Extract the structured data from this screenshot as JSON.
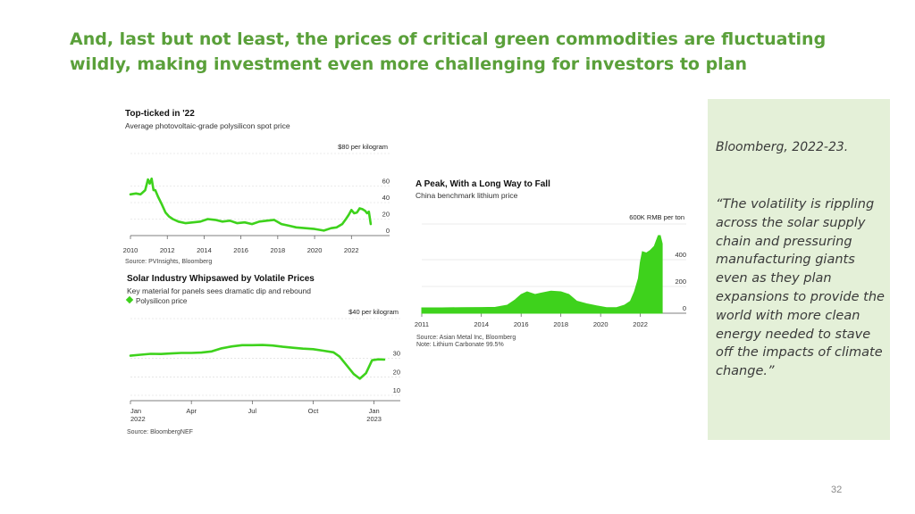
{
  "slide": {
    "title": "And, last but not least, the prices of critical green commodities are fluctuating wildly, making investment even more challenging for investors to plan",
    "source": "Bloomberg, 2022-23.",
    "quote": "“The volatility is rippling across the solar supply chain and pressuring manufacturing giants even as they plan expansions to provide the world with more clean energy needed to stave off the impacts of climate change.”",
    "page_number": "32",
    "accent_color": "#5aa03a",
    "sidebar_color": "#e4f0d8"
  },
  "chart_data": [
    {
      "type": "line",
      "title": "Top-ticked in '22",
      "subtitle": "Average photovoltaic-grade polysilicon spot price",
      "unit_label": "$80 per kilogram",
      "yticks": [
        "60",
        "40",
        "20",
        "0"
      ],
      "ylim": [
        0,
        80
      ],
      "xlim": [
        2010,
        2023.2
      ],
      "xticks": [
        "2010",
        "2012",
        "2014",
        "2016",
        "2018",
        "2020",
        "2022"
      ],
      "source": "Source: PVInsights, Bloomberg",
      "color": "#3ed21c",
      "x": [
        2010,
        2010.3,
        2010.55,
        2010.8,
        2010.95,
        2011.05,
        2011.15,
        2011.25,
        2011.35,
        2011.5,
        2011.7,
        2011.9,
        2012.1,
        2012.3,
        2012.6,
        2013,
        2013.4,
        2013.8,
        2014.2,
        2014.6,
        2015,
        2015.4,
        2015.8,
        2016.2,
        2016.6,
        2017,
        2017.4,
        2017.8,
        2018.2,
        2018.6,
        2019,
        2019.5,
        2020,
        2020.5,
        2020.9,
        2021.2,
        2021.5,
        2021.7,
        2021.85,
        2022,
        2022.15,
        2022.3,
        2022.45,
        2022.6,
        2022.75,
        2022.85,
        2022.95,
        2023.05
      ],
      "values": [
        50,
        51,
        50,
        55,
        68,
        63,
        69,
        55,
        55,
        47,
        38,
        28,
        23,
        20,
        17,
        15,
        16,
        17,
        20,
        19,
        17,
        18,
        15,
        16,
        14,
        17,
        18,
        19,
        14,
        12,
        10,
        9,
        8,
        6,
        9,
        10,
        14,
        20,
        25,
        31,
        27,
        28,
        33,
        32,
        30,
        27,
        29,
        14
      ]
    },
    {
      "type": "line",
      "title": "Solar Industry Whipsawed by Volatile Prices",
      "subtitle": "Key material for panels sees dramatic dip and rebound",
      "legend": [
        "Polysilicon price"
      ],
      "unit_label": "$40 per kilogram",
      "yticks": [
        "30",
        "20",
        "10"
      ],
      "ylim": [
        10,
        40
      ],
      "xlim": [
        0,
        12.5
      ],
      "xticks": [
        "Jan 2022",
        "Apr",
        "Jul",
        "Oct",
        "Jan 2023"
      ],
      "source": "Source: BloombergNEF",
      "color": "#3ed21c",
      "x": [
        0,
        0.5,
        1,
        1.5,
        2,
        2.5,
        3,
        3.5,
        4,
        4.5,
        5,
        5.5,
        6,
        6.5,
        7,
        7.5,
        8,
        8.5,
        9,
        9.5,
        10,
        10.3,
        10.6,
        11,
        11.3,
        11.6,
        11.9,
        12.2,
        12.5
      ],
      "values": [
        31.5,
        32,
        32.5,
        32.4,
        32.7,
        33,
        33,
        33.2,
        33.8,
        35.5,
        36.5,
        37.2,
        37.2,
        37.3,
        37,
        36.3,
        35.8,
        35.3,
        35,
        34.2,
        33.3,
        31,
        27,
        21.5,
        19,
        22,
        29,
        29.5,
        29.4
      ]
    },
    {
      "type": "area",
      "title": "A Peak, With a Long Way to Fall",
      "subtitle": "China benchmark lithium price",
      "unit_label": "600K RMB per ton",
      "yticks": [
        "400",
        "200",
        "0"
      ],
      "ylim": [
        0,
        600
      ],
      "xlim": [
        2011,
        2023.5
      ],
      "xticks": [
        "2011",
        "2014",
        "2016",
        "2018",
        "2020",
        "2022"
      ],
      "source": "Source: Asian Metal Inc, Bloomberg",
      "note": "Note: Lithium Carbonate 99.5%",
      "color": "#3ed21c",
      "x": [
        2011,
        2012,
        2013,
        2014,
        2014.7,
        2015.3,
        2015.7,
        2016,
        2016.3,
        2016.7,
        2017,
        2017.5,
        2018,
        2018.4,
        2018.8,
        2019.3,
        2019.8,
        2020.3,
        2020.8,
        2021.2,
        2021.5,
        2021.7,
        2021.9,
        2022,
        2022.1,
        2022.3,
        2022.5,
        2022.7,
        2022.8,
        2022.9,
        2023,
        2023.1
      ],
      "values": [
        40,
        40,
        42,
        43,
        44,
        60,
        100,
        140,
        160,
        140,
        150,
        165,
        160,
        140,
        90,
        70,
        55,
        42,
        42,
        60,
        90,
        160,
        260,
        380,
        460,
        450,
        470,
        500,
        540,
        580,
        580,
        520
      ]
    }
  ]
}
